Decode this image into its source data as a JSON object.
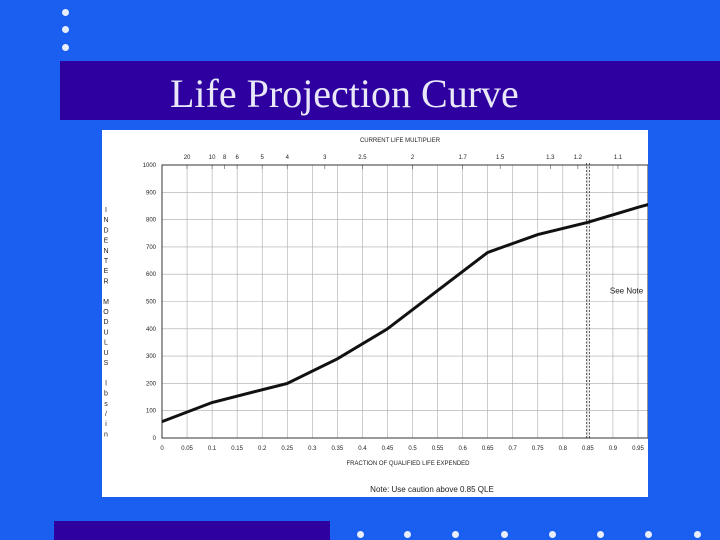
{
  "slide": {
    "title": "Life Projection Curve"
  },
  "chart_data": {
    "type": "line",
    "top_axis_label": "CURRENT LIFE MULTIPLIER",
    "top_ticks": [
      {
        "x": 0.05,
        "label": "20"
      },
      {
        "x": 0.1,
        "label": "10"
      },
      {
        "x": 0.125,
        "label": "8"
      },
      {
        "x": 0.15,
        "label": "6"
      },
      {
        "x": 0.2,
        "label": "5"
      },
      {
        "x": 0.25,
        "label": "4"
      },
      {
        "x": 0.325,
        "label": "3"
      },
      {
        "x": 0.4,
        "label": "2.5"
      },
      {
        "x": 0.5,
        "label": "2"
      },
      {
        "x": 0.6,
        "label": "1.7"
      },
      {
        "x": 0.675,
        "label": "1.5"
      },
      {
        "x": 0.775,
        "label": "1.3"
      },
      {
        "x": 0.83,
        "label": "1.2"
      },
      {
        "x": 0.91,
        "label": "1.1"
      }
    ],
    "xlabel": "FRACTION OF QUALIFIED LIFE EXPENDED",
    "x_ticks": [
      "0",
      "0.05",
      "0.1",
      "0.15",
      "0.2",
      "0.25",
      "0.3",
      "0.35",
      "0.4",
      "0.45",
      "0.5",
      "0.55",
      "0.6",
      "0.65",
      "0.7",
      "0.75",
      "0.8",
      "0.85",
      "0.9",
      "0.95"
    ],
    "xlim": [
      0,
      0.97
    ],
    "ylabel_chars": [
      "I",
      "N",
      "D",
      "E",
      "N",
      "T",
      "E",
      "R",
      "",
      "M",
      "O",
      "D",
      "U",
      "L",
      "U",
      "S",
      "",
      "l",
      "b",
      "s",
      "/",
      "i",
      "n"
    ],
    "y_ticks": [
      "0",
      "100",
      "200",
      "300",
      "400",
      "500",
      "600",
      "700",
      "800",
      "900",
      "1000"
    ],
    "ylim": [
      0,
      1000
    ],
    "grid": true,
    "series": [
      {
        "x": [
          0,
          0.1,
          0.25,
          0.35,
          0.45,
          0.55,
          0.65,
          0.75,
          0.85,
          0.95,
          0.97
        ],
        "y": [
          60,
          130,
          200,
          290,
          400,
          540,
          680,
          745,
          790,
          845,
          855
        ]
      }
    ],
    "reference_line": {
      "x": 0.85,
      "label": "See Note"
    },
    "footnote": "Note: Use caution above 0.85 QLE"
  }
}
